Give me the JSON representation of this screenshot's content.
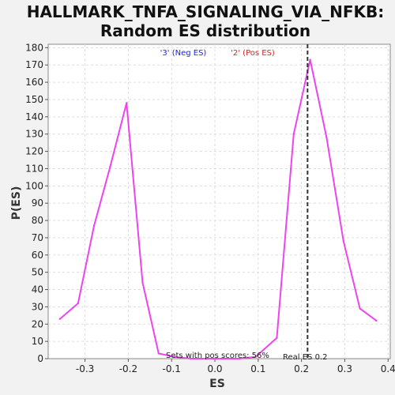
{
  "chart_data": {
    "type": "line",
    "title_line1": "HALLMARK_TNFA_SIGNALING_VIA_NFKB:",
    "title_line2": "Random ES distribution",
    "xlabel": "ES",
    "ylabel": "P(ES)",
    "xlim": [
      -0.385,
      0.405
    ],
    "ylim": [
      0,
      182
    ],
    "x_ticks": [
      -0.3,
      -0.2,
      -0.1,
      0.0,
      0.1,
      0.2,
      0.3,
      0.4
    ],
    "x_tick_labels": [
      "-0.3",
      "-0.2",
      "-0.1",
      "0.0",
      "0.1",
      "0.2",
      "0.3",
      "0.4"
    ],
    "y_ticks": [
      0,
      10,
      20,
      30,
      40,
      50,
      60,
      70,
      80,
      90,
      100,
      110,
      120,
      130,
      140,
      150,
      160,
      170,
      180
    ],
    "y_tick_labels": [
      "0",
      "10",
      "20",
      "30",
      "40",
      "50",
      "60",
      "70",
      "80",
      "90",
      "100",
      "110",
      "120",
      "130",
      "140",
      "150",
      "160",
      "170",
      "180"
    ],
    "grid": true,
    "series": [
      {
        "color": "#ee44ee",
        "x": [
          -0.358,
          -0.316,
          -0.279,
          -0.242,
          -0.204,
          -0.167,
          -0.13,
          -0.093,
          -0.055,
          -0.018,
          0.019,
          0.056,
          0.094,
          0.143,
          0.182,
          0.22,
          0.258,
          0.297,
          0.335,
          0.373
        ],
        "y": [
          23,
          32,
          77,
          111,
          148,
          44,
          3,
          1,
          0,
          0,
          0,
          0,
          1,
          12,
          130,
          173,
          128,
          68,
          29,
          22
        ]
      }
    ],
    "legend": [
      {
        "label": "'3' (Neg ES)",
        "color": "#2222dd"
      },
      {
        "label": "'2' (Pos ES)",
        "color": "#dd2222"
      }
    ],
    "legend_placement": "top-center",
    "real_es_line": {
      "x": 0.214,
      "style": "dashed",
      "color": "#333333",
      "label": "Real ES 0.2"
    },
    "annotation": {
      "text": "Sets with pos scores: 56%"
    }
  }
}
